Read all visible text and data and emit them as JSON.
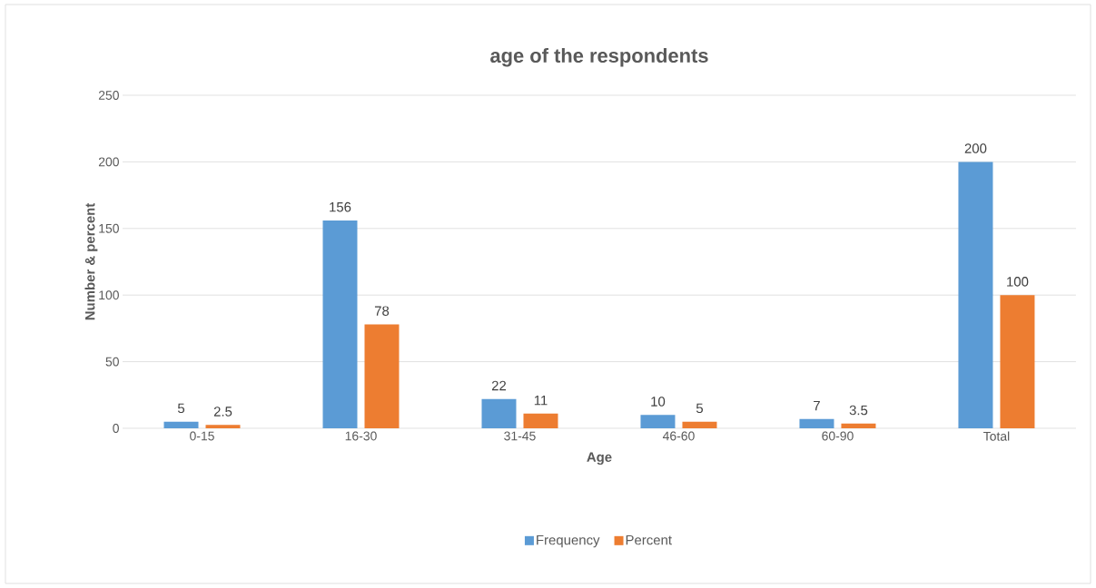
{
  "chart_data": {
    "type": "bar",
    "title": "age of the respondents",
    "xlabel": "Age",
    "ylabel": "Number & percent",
    "categories": [
      "0-15",
      "16-30",
      "31-45",
      "46-60",
      "60-90",
      "Total"
    ],
    "series": [
      {
        "name": "Frequency",
        "color": "#5b9bd5",
        "values": [
          5,
          156,
          22,
          10,
          7,
          200
        ]
      },
      {
        "name": "Percent",
        "color": "#ed7d31",
        "values": [
          2.5,
          78,
          11,
          5,
          3.5,
          100
        ]
      }
    ],
    "ylim": [
      0,
      250
    ],
    "yticks": [
      0,
      50,
      100,
      150,
      200,
      250
    ],
    "grid": "y",
    "legend": "bottom",
    "data_labels": true
  }
}
